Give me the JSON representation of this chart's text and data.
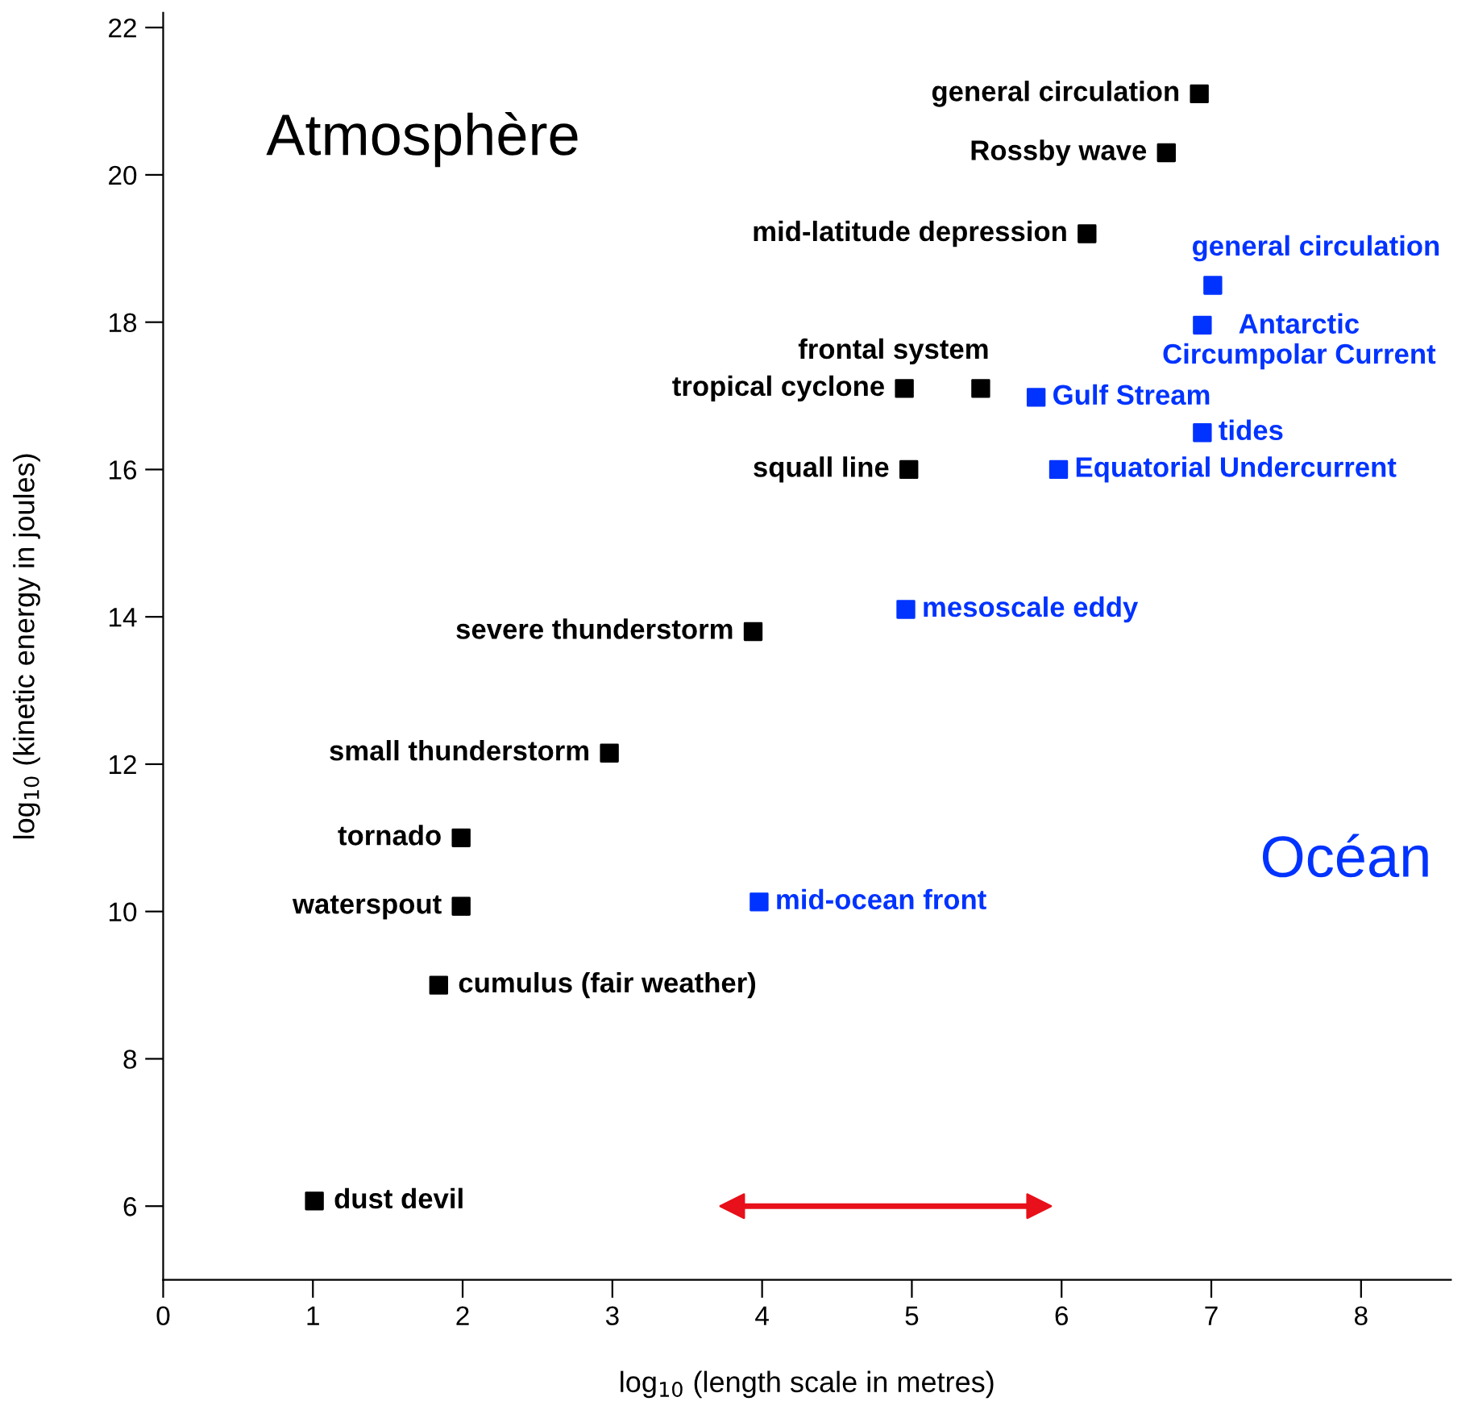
{
  "chart_data": {
    "type": "scatter",
    "xlabel": "log$_{10}$ (length scale in metres)",
    "ylabel": "log$_{10}$ (kinetic energy in joules)",
    "xlim": [
      0,
      8.6
    ],
    "ylim": [
      5,
      22.2
    ],
    "xticks": [
      0,
      1,
      2,
      3,
      4,
      5,
      6,
      7,
      8
    ],
    "yticks": [
      6,
      8,
      10,
      12,
      14,
      16,
      18,
      20,
      22
    ],
    "marker": "square",
    "grid": false,
    "series": [
      {
        "name": "Atmosphère",
        "color": "#000000",
        "x": [
          6.92,
          6.7,
          6.17,
          4.95,
          5.46,
          4.98,
          3.94,
          2.98,
          1.99,
          1.99,
          1.84,
          1.01
        ],
        "values": [
          21.1,
          20.3,
          19.2,
          17.1,
          17.1,
          16.0,
          13.8,
          12.15,
          11.0,
          10.07,
          9.0,
          6.07
        ],
        "value_labels": [
          "general circulation",
          "Rossby wave",
          "mid-latitude depression",
          "tropical cyclone",
          "frontal system",
          "squall line",
          "severe thunderstorm",
          "small thunderstorm",
          "tornado",
          "waterspout",
          "cumulus (fair weather)",
          "dust devil"
        ]
      },
      {
        "name": "Océan",
        "color": "#0033ff",
        "x": [
          7.01,
          6.94,
          5.83,
          6.94,
          5.98,
          4.96,
          3.98
        ],
        "values": [
          18.5,
          17.96,
          16.98,
          16.5,
          16.0,
          14.1,
          10.13
        ],
        "value_labels": [
          "general circulation",
          "Antarctic\nCircumpolar Current",
          "Gulf Stream",
          "tides",
          "Equatorial Undercurrent",
          "mesoscale eddy",
          "mid-ocean front"
        ]
      },
      {
        "type": "line",
        "color": "#e8101a",
        "x": [
          3.8,
          5.85
        ],
        "values": [
          6.0,
          6.0
        ],
        "marker": "triangle"
      }
    ]
  }
}
